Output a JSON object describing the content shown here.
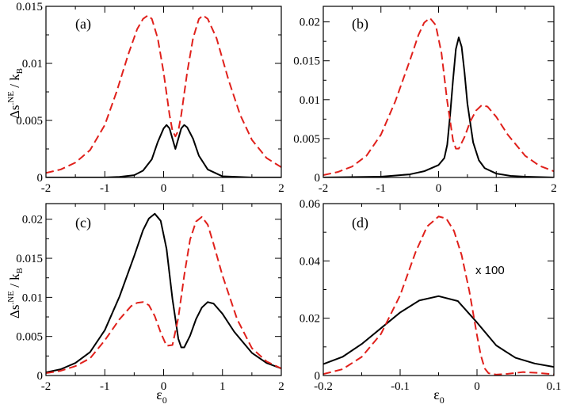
{
  "figure": {
    "ylabel_main": "Δs",
    "ylabel_sup": ".NE",
    "ylabel_mid": " / k",
    "ylabel_sub": "B",
    "xlabel_main": "ε",
    "xlabel_sub": "0"
  },
  "chart_data": [
    {
      "type": "line",
      "panel_label": "(a)",
      "xlim": [
        -2,
        2
      ],
      "ylim": [
        0,
        0.015
      ],
      "xticks": [
        -2,
        -1,
        0,
        1,
        2
      ],
      "xtick_labels": [
        "-2",
        "-1",
        "0",
        "1",
        "2"
      ],
      "yticks": [
        0,
        0.005,
        0.01,
        0.015
      ],
      "ytick_labels": [
        "0",
        "0.005",
        "0.01",
        "0.015"
      ],
      "series": [
        {
          "name": "solid",
          "color": "#000000",
          "style": "solid",
          "x": [
            -2,
            -1.5,
            -1,
            -0.75,
            -0.5,
            -0.35,
            -0.2,
            -0.1,
            0,
            0.05,
            0.1,
            0.15,
            0.2,
            0.25,
            0.3,
            0.35,
            0.4,
            0.5,
            0.6,
            0.75,
            1,
            1.5,
            2
          ],
          "y": [
            0,
            0,
            0,
            5e-05,
            0.0002,
            0.0006,
            0.0016,
            0.0031,
            0.0043,
            0.0046,
            0.0043,
            0.0034,
            0.0025,
            0.0034,
            0.0043,
            0.0046,
            0.0044,
            0.0034,
            0.0019,
            0.0007,
            0.0001,
            0,
            0
          ]
        },
        {
          "name": "dashed",
          "color": "#e0201b",
          "style": "dashed",
          "x": [
            -2,
            -1.75,
            -1.5,
            -1.25,
            -1,
            -0.8,
            -0.6,
            -0.45,
            -0.35,
            -0.27,
            -0.2,
            -0.1,
            0,
            0.1,
            0.15,
            0.2,
            0.25,
            0.3,
            0.4,
            0.5,
            0.6,
            0.67,
            0.75,
            0.9,
            1.1,
            1.3,
            1.5,
            1.75,
            2
          ],
          "y": [
            0.0004,
            0.0007,
            0.0013,
            0.0024,
            0.0046,
            0.0075,
            0.0108,
            0.013,
            0.0139,
            0.0142,
            0.0139,
            0.0122,
            0.0092,
            0.0055,
            0.0041,
            0.0036,
            0.0041,
            0.0055,
            0.0092,
            0.0122,
            0.0139,
            0.0142,
            0.0139,
            0.0122,
            0.0086,
            0.0055,
            0.0033,
            0.0017,
            0.0009
          ]
        }
      ]
    },
    {
      "type": "line",
      "panel_label": "(b)",
      "xlim": [
        -2,
        2
      ],
      "ylim": [
        0,
        0.022
      ],
      "xticks": [
        -2,
        -1,
        0,
        1,
        2
      ],
      "xtick_labels": [
        "-2",
        "-1",
        "0",
        "1",
        "2"
      ],
      "yticks": [
        0,
        0.005,
        0.01,
        0.015,
        0.02
      ],
      "ytick_labels": [
        "0",
        "0.005",
        "0.01",
        "0.015",
        "0.02"
      ],
      "series": [
        {
          "name": "solid",
          "color": "#000000",
          "style": "solid",
          "x": [
            -2,
            -1.5,
            -1,
            -0.5,
            -0.25,
            0,
            0.1,
            0.15,
            0.2,
            0.25,
            0.3,
            0.35,
            0.4,
            0.45,
            0.5,
            0.6,
            0.7,
            0.8,
            1,
            1.25,
            1.5,
            2
          ],
          "y": [
            0,
            5e-05,
            0.0001,
            0.0004,
            0.0008,
            0.0016,
            0.0025,
            0.0042,
            0.008,
            0.0125,
            0.0165,
            0.018,
            0.0168,
            0.0135,
            0.0095,
            0.0045,
            0.0022,
            0.0012,
            0.0005,
            0.0002,
            0.0001,
            0
          ]
        },
        {
          "name": "dashed",
          "color": "#e0201b",
          "style": "dashed",
          "x": [
            -2,
            -1.75,
            -1.5,
            -1.25,
            -1,
            -0.75,
            -0.5,
            -0.35,
            -0.25,
            -0.15,
            -0.05,
            0.05,
            0.15,
            0.25,
            0.3,
            0.35,
            0.45,
            0.55,
            0.65,
            0.75,
            0.85,
            1,
            1.2,
            1.5,
            1.75,
            2
          ],
          "y": [
            0.0003,
            0.0007,
            0.0014,
            0.0028,
            0.0055,
            0.0098,
            0.015,
            0.0183,
            0.0199,
            0.0205,
            0.0196,
            0.016,
            0.0098,
            0.0048,
            0.0037,
            0.0037,
            0.0052,
            0.0072,
            0.0086,
            0.0093,
            0.0091,
            0.0078,
            0.0055,
            0.0028,
            0.0015,
            0.0008
          ]
        }
      ]
    },
    {
      "type": "line",
      "panel_label": "(c)",
      "xlim": [
        -2,
        2
      ],
      "ylim": [
        0,
        0.022
      ],
      "xticks": [
        -2,
        -1,
        0,
        1,
        2
      ],
      "xtick_labels": [
        "-2",
        "-1",
        "0",
        "1",
        "2"
      ],
      "yticks": [
        0,
        0.005,
        0.01,
        0.015,
        0.02
      ],
      "ytick_labels": [
        "0",
        "0.005",
        "0.01",
        "0.015",
        "0.02"
      ],
      "series": [
        {
          "name": "solid",
          "color": "#000000",
          "style": "solid",
          "x": [
            -2,
            -1.75,
            -1.5,
            -1.25,
            -1,
            -0.75,
            -0.5,
            -0.35,
            -0.25,
            -0.15,
            -0.05,
            0.05,
            0.15,
            0.25,
            0.3,
            0.35,
            0.45,
            0.55,
            0.65,
            0.75,
            0.85,
            1,
            1.2,
            1.5,
            1.75,
            2
          ],
          "y": [
            0.0004,
            0.0008,
            0.0016,
            0.003,
            0.0058,
            0.0101,
            0.0153,
            0.0186,
            0.0201,
            0.0207,
            0.0198,
            0.0162,
            0.0098,
            0.0047,
            0.0036,
            0.0036,
            0.0051,
            0.0072,
            0.0087,
            0.0094,
            0.0092,
            0.0079,
            0.0056,
            0.0029,
            0.0016,
            0.0009
          ]
        },
        {
          "name": "dashed",
          "color": "#e0201b",
          "style": "dashed",
          "x": [
            -2,
            -1.75,
            -1.5,
            -1.25,
            -1,
            -0.75,
            -0.55,
            -0.45,
            -0.35,
            -0.25,
            -0.15,
            -0.05,
            0.05,
            0.15,
            0.25,
            0.35,
            0.45,
            0.55,
            0.65,
            0.75,
            0.85,
            1,
            1.25,
            1.5,
            1.75,
            2
          ],
          "y": [
            0.0003,
            0.0006,
            0.0012,
            0.0022,
            0.0045,
            0.0072,
            0.0089,
            0.0093,
            0.0094,
            0.009,
            0.0076,
            0.0055,
            0.0038,
            0.0039,
            0.0074,
            0.0128,
            0.0174,
            0.0197,
            0.0203,
            0.0193,
            0.0168,
            0.0128,
            0.0072,
            0.0035,
            0.0018,
            0.0009
          ]
        }
      ]
    },
    {
      "type": "line",
      "panel_label": "(d)",
      "annotation": "x 100",
      "xlim": [
        -0.2,
        0.1
      ],
      "ylim": [
        0,
        0.06
      ],
      "xticks": [
        -0.2,
        -0.1,
        0,
        0.1
      ],
      "xtick_labels": [
        "-0.2",
        "-0.1",
        "0",
        "0.1"
      ],
      "yticks": [
        0,
        0.02,
        0.04,
        0.06
      ],
      "ytick_labels": [
        "0",
        "0.02",
        "0.04",
        "0.06"
      ],
      "series": [
        {
          "name": "solid (x 100)",
          "color": "#000000",
          "style": "solid",
          "x": [
            -0.2,
            -0.175,
            -0.15,
            -0.125,
            -0.1,
            -0.075,
            -0.05,
            -0.025,
            0,
            0.025,
            0.05,
            0.075,
            0.1
          ],
          "y": [
            0.004,
            0.0065,
            0.011,
            0.0165,
            0.022,
            0.0262,
            0.0277,
            0.026,
            0.0185,
            0.0105,
            0.0062,
            0.0042,
            0.003
          ]
        },
        {
          "name": "dashed",
          "color": "#e0201b",
          "style": "dashed",
          "x": [
            -0.2,
            -0.175,
            -0.15,
            -0.125,
            -0.1,
            -0.08,
            -0.065,
            -0.05,
            -0.04,
            -0.03,
            -0.02,
            -0.01,
            0,
            0.005,
            0.01,
            0.015,
            0.025,
            0.04,
            0.06,
            0.08,
            0.1
          ],
          "y": [
            0.0005,
            0.0022,
            0.0065,
            0.0145,
            0.028,
            0.043,
            0.052,
            0.0555,
            0.0548,
            0.0505,
            0.042,
            0.0295,
            0.014,
            0.007,
            0.0025,
            0.0008,
            0.0003,
            0.0006,
            0.0012,
            0.0009,
            0.0004
          ]
        }
      ]
    }
  ]
}
